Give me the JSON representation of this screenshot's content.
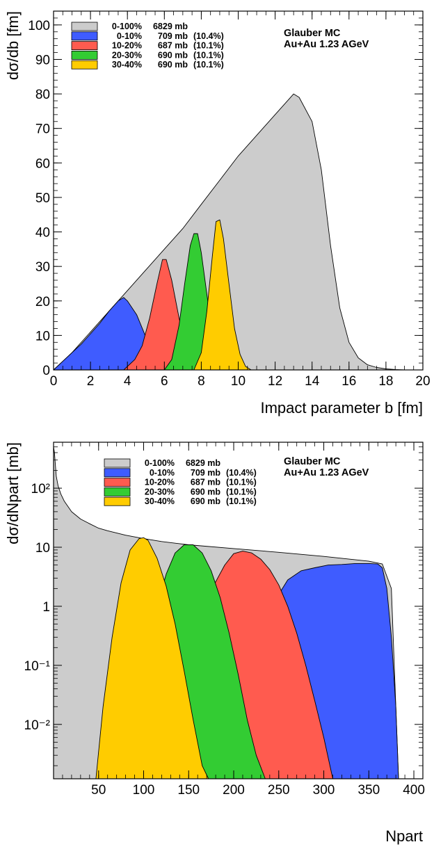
{
  "chart_data": [
    {
      "type": "area",
      "ylabel": "dσ/db [fm]",
      "xlabel": "Impact parameter b [fm]",
      "xlim": [
        0,
        20
      ],
      "ylim": [
        0,
        104
      ],
      "xticks": [
        "0",
        "2",
        "4",
        "6",
        "8",
        "10",
        "12",
        "14",
        "16",
        "18",
        "20"
      ],
      "yticks": [
        "0",
        "10",
        "20",
        "30",
        "40",
        "50",
        "60",
        "70",
        "80",
        "90",
        "100"
      ],
      "annotation": [
        "Glauber MC",
        "Au+Au 1.23 AGeV"
      ],
      "legend": [
        {
          "class": "0-100%",
          "sigma": "6829 mb",
          "frac": ""
        },
        {
          "class": "0-10%",
          "sigma": "709 mb",
          "frac": "(10.4%)"
        },
        {
          "class": "10-20%",
          "sigma": "687 mb",
          "frac": "(10.1%)"
        },
        {
          "class": "20-30%",
          "sigma": "690 mb",
          "frac": "(10.1%)"
        },
        {
          "class": "30-40%",
          "sigma": "690 mb",
          "frac": "(10.1%)"
        }
      ],
      "series": [
        {
          "name": "0-100%",
          "color": "#cccccc",
          "x": [
            0,
            1,
            2,
            3,
            4,
            5,
            6,
            7,
            8,
            9,
            10,
            11,
            12,
            13,
            13.3,
            14,
            14.5,
            15,
            15.5,
            16,
            16.5,
            17,
            17.5,
            18,
            18.5,
            19
          ],
          "y": [
            0,
            5,
            11,
            17,
            23,
            29,
            35,
            41,
            48,
            55,
            62,
            68,
            74,
            80,
            79,
            72,
            58,
            36,
            18,
            8,
            3.5,
            1.5,
            0.7,
            0.3,
            0.1,
            0
          ]
        },
        {
          "name": "0-10%",
          "color": "#3f5cff",
          "x": [
            0,
            0.5,
            1,
            1.5,
            2,
            2.5,
            3,
            3.5,
            3.8,
            4,
            4.5,
            5,
            5.5,
            6,
            6.5,
            7
          ],
          "y": [
            0,
            2.5,
            5,
            7.5,
            10.5,
            13.5,
            17,
            20,
            21,
            20,
            16,
            9.5,
            4.5,
            1.5,
            0.4,
            0
          ]
        },
        {
          "name": "10-20%",
          "color": "#ff5b4f",
          "x": [
            3.8,
            4.4,
            4.8,
            5.2,
            5.6,
            5.9,
            6.1,
            6.4,
            6.8,
            7.2,
            7.6,
            8
          ],
          "y": [
            0,
            3,
            7,
            15,
            25,
            32,
            32,
            26,
            15,
            6,
            1.5,
            0
          ]
        },
        {
          "name": "20-30%",
          "color": "#33cc33",
          "x": [
            6,
            6.4,
            6.8,
            7.1,
            7.4,
            7.6,
            7.8,
            8,
            8.3,
            8.6,
            9,
            9.3
          ],
          "y": [
            0,
            3,
            13,
            25,
            36,
            39.5,
            39.5,
            34,
            22,
            10,
            2,
            0
          ]
        },
        {
          "name": "30-40%",
          "color": "#ffcc00",
          "x": [
            7.6,
            8,
            8.3,
            8.6,
            8.8,
            9,
            9.2,
            9.5,
            9.8,
            10.1,
            10.4,
            10.7
          ],
          "y": [
            0,
            5,
            17,
            33,
            43,
            43.5,
            38,
            25,
            12,
            4.5,
            1,
            0
          ]
        }
      ]
    },
    {
      "type": "area",
      "ylabel": "dσ/dNpart [mb]",
      "xlabel": "Npart",
      "xlim": [
        0,
        410
      ],
      "ylim": [
        0.0012,
        600
      ],
      "yscale": "log",
      "xticks": [
        "50",
        "100",
        "150",
        "200",
        "250",
        "300",
        "350",
        "400"
      ],
      "yticks": [
        "10⁻²",
        "10⁻¹",
        "1",
        "10",
        "10²"
      ],
      "annotation": [
        "Glauber MC",
        "Au+Au 1.23 AGeV"
      ],
      "legend": [
        {
          "class": "0-100%",
          "sigma": "6829 mb",
          "frac": ""
        },
        {
          "class": "0-10%",
          "sigma": "709 mb",
          "frac": "(10.4%)"
        },
        {
          "class": "10-20%",
          "sigma": "687 mb",
          "frac": "(10.1%)"
        },
        {
          "class": "20-30%",
          "sigma": "690 mb",
          "frac": "(10.1%)"
        },
        {
          "class": "30-40%",
          "sigma": "690 mb",
          "frac": "(10.1%)"
        }
      ],
      "series": [
        {
          "name": "0-100%",
          "color": "#cccccc",
          "x": [
            0,
            1,
            2,
            3,
            5,
            8,
            12,
            20,
            30,
            40,
            50,
            60,
            80,
            100,
            120,
            150,
            200,
            250,
            300,
            350,
            365,
            375,
            380,
            383
          ],
          "y": [
            500,
            400,
            250,
            160,
            110,
            80,
            60,
            40,
            30,
            25,
            21,
            19,
            16,
            14,
            12.5,
            11,
            9.5,
            8.2,
            7,
            5.8,
            5.2,
            2,
            0.02,
            0.0012
          ]
        },
        {
          "name": "0-10%",
          "color": "#3f5cff",
          "x": [
            172,
            185,
            200,
            215,
            230,
            245,
            260,
            275,
            290,
            305,
            320,
            335,
            350,
            360,
            365,
            370,
            375,
            380,
            383
          ],
          "y": [
            0.0012,
            0.004,
            0.015,
            0.07,
            0.3,
            1.2,
            2.8,
            4,
            4.5,
            5,
            5.1,
            5.3,
            5.3,
            5.2,
            4.5,
            2,
            0.3,
            0.02,
            0.0012
          ]
        },
        {
          "name": "10-20%",
          "color": "#ff5b4f",
          "x": [
            120,
            125,
            130,
            140,
            150,
            160,
            170,
            180,
            190,
            200,
            210,
            220,
            230,
            240,
            250,
            260,
            270,
            280,
            290,
            300,
            310
          ],
          "y": [
            0.0012,
            0.004,
            0.012,
            0.04,
            0.12,
            0.4,
            1.1,
            2.6,
            5,
            7.8,
            8.6,
            8,
            6.3,
            4.2,
            2.3,
            1,
            0.35,
            0.1,
            0.025,
            0.006,
            0.0012
          ]
        },
        {
          "name": "20-30%",
          "color": "#33cc33",
          "x": [
            78,
            85,
            95,
            105,
            115,
            125,
            135,
            145,
            155,
            165,
            175,
            185,
            195,
            205,
            215,
            225,
            235
          ],
          "y": [
            0.0012,
            0.004,
            0.03,
            0.2,
            1,
            3.5,
            8,
            11,
            11,
            8,
            4,
            1.4,
            0.35,
            0.07,
            0.012,
            0.003,
            0.0012
          ]
        },
        {
          "name": "30-40%",
          "color": "#ffcc00",
          "x": [
            47,
            55,
            65,
            75,
            85,
            95,
            100,
            105,
            115,
            125,
            135,
            145,
            155,
            165,
            172
          ],
          "y": [
            0.0012,
            0.02,
            0.3,
            2.5,
            9,
            14,
            14.5,
            13,
            6.5,
            2.2,
            0.5,
            0.08,
            0.012,
            0.002,
            0.0012
          ]
        }
      ]
    }
  ]
}
